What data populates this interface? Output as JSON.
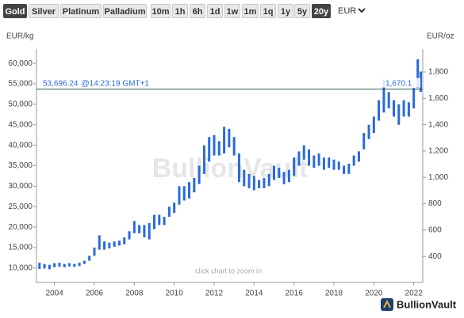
{
  "toolbar": {
    "metals": [
      "Gold",
      "Silver",
      "Platinum",
      "Palladium"
    ],
    "metal_selected": 0,
    "ranges": [
      "10m",
      "1h",
      "6h",
      "1d",
      "1w",
      "1m",
      "1q",
      "1y",
      "5y",
      "20y"
    ],
    "range_selected": 9,
    "currency": "EUR"
  },
  "chart_data": {
    "type": "range-bar",
    "y_label": "EUR/kg",
    "y2_label": "EUR/oz",
    "watermark": "BullionVault",
    "hint": "click chart to zoom in",
    "logo": "BullionVault",
    "color": "#2a6ad8",
    "x": [
      2003.25,
      2003.5,
      2003.75,
      2004.0,
      2004.25,
      2004.5,
      2004.75,
      2005.0,
      2005.25,
      2005.5,
      2005.75,
      2006.0,
      2006.25,
      2006.5,
      2006.75,
      2007.0,
      2007.25,
      2007.5,
      2007.75,
      2008.0,
      2008.25,
      2008.5,
      2008.75,
      2009.0,
      2009.25,
      2009.5,
      2009.75,
      2010.0,
      2010.25,
      2010.5,
      2010.75,
      2011.0,
      2011.25,
      2011.5,
      2011.75,
      2012.0,
      2012.25,
      2012.5,
      2012.75,
      2013.0,
      2013.25,
      2013.5,
      2013.75,
      2014.0,
      2014.25,
      2014.5,
      2014.75,
      2015.0,
      2015.25,
      2015.5,
      2015.75,
      2016.0,
      2016.25,
      2016.5,
      2016.75,
      2017.0,
      2017.25,
      2017.5,
      2017.75,
      2018.0,
      2018.25,
      2018.5,
      2018.75,
      2019.0,
      2019.25,
      2019.5,
      2019.75,
      2020.0,
      2020.25,
      2020.5,
      2020.75,
      2021.0,
      2021.25,
      2021.5,
      2021.75,
      2022.0,
      2022.2,
      2022.35
    ],
    "low": [
      9800,
      9900,
      9700,
      10200,
      10300,
      10200,
      10400,
      10300,
      10500,
      11000,
      11800,
      13000,
      14500,
      14500,
      14800,
      15200,
      15500,
      15800,
      17000,
      18500,
      18500,
      17500,
      17000,
      19500,
      20500,
      20500,
      22500,
      23500,
      25500,
      26500,
      27000,
      28500,
      30500,
      33000,
      36000,
      37500,
      37500,
      38000,
      39500,
      37500,
      31000,
      30000,
      29500,
      29000,
      29500,
      29500,
      30000,
      31500,
      32000,
      30500,
      31000,
      32500,
      35000,
      36500,
      35000,
      34500,
      35000,
      34000,
      34500,
      34000,
      34000,
      33000,
      33000,
      35000,
      36000,
      39000,
      41500,
      43000,
      46000,
      48000,
      49000,
      47000,
      45000,
      47000,
      47000,
      49000,
      54000,
      53000
    ],
    "high": [
      11300,
      11000,
      10800,
      11200,
      11300,
      11000,
      11200,
      11000,
      11300,
      11800,
      13000,
      15000,
      18000,
      16500,
      16200,
      16500,
      16700,
      17500,
      19000,
      21500,
      20500,
      20500,
      21000,
      23000,
      23000,
      22500,
      25000,
      26000,
      30000,
      30000,
      31000,
      32000,
      35000,
      40000,
      42000,
      42500,
      41000,
      44500,
      44000,
      42000,
      38000,
      34000,
      33000,
      32500,
      31500,
      32000,
      33000,
      35000,
      34500,
      33500,
      34000,
      37000,
      38500,
      40000,
      39000,
      37500,
      38000,
      37000,
      37000,
      36500,
      36000,
      35000,
      35500,
      37500,
      38500,
      43000,
      45000,
      47000,
      51000,
      56000,
      53000,
      51000,
      50000,
      51000,
      50500,
      54000,
      61000,
      58000
    ],
    "xlim": [
      2003.1,
      2022.45
    ],
    "xticks": [
      2004,
      2006,
      2008,
      2010,
      2012,
      2014,
      2016,
      2018,
      2020,
      2022
    ],
    "ylim": [
      6500,
      63500
    ],
    "yticks": [
      {
        "value": 10000,
        "label": "10,000"
      },
      {
        "value": 15000,
        "label": "15,000"
      },
      {
        "value": 20000,
        "label": "20,000"
      },
      {
        "value": 25000,
        "label": "25,000"
      },
      {
        "value": 30000,
        "label": "30,000"
      },
      {
        "value": 35000,
        "label": "35,000"
      },
      {
        "value": 40000,
        "label": "40,000"
      },
      {
        "value": 45000,
        "label": "45,000"
      },
      {
        "value": 50000,
        "label": "50,000"
      },
      {
        "value": 55000,
        "label": "55,000"
      },
      {
        "value": 60000,
        "label": "60,000"
      }
    ],
    "y2lim": [
      203,
      1974
    ],
    "y2ticks": [
      400,
      600,
      800,
      {
        "value": 1000,
        "label": "1,000"
      },
      {
        "value": 1200,
        "label": "1,200"
      },
      {
        "value": 1400,
        "label": "1,400"
      },
      {
        "value": 1600,
        "label": "1,600"
      },
      {
        "value": 1800,
        "label": "1,800"
      }
    ],
    "price_line": {
      "value": 53696.24,
      "label": "53,696.24",
      "time": "@14:23:19 GMT+1",
      "value_oz": 1670.1,
      "value_oz_label": "1,670.1",
      "color": "#2f5f57"
    }
  }
}
